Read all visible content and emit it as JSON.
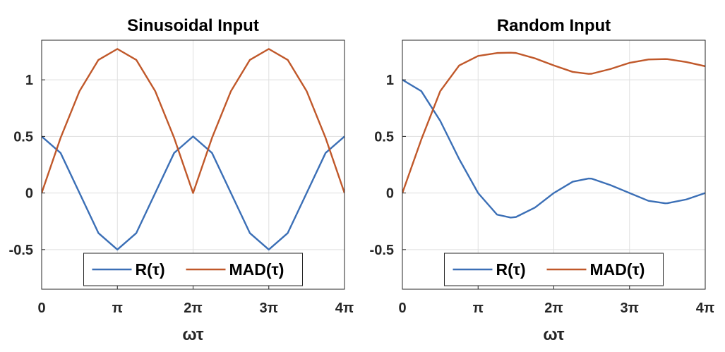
{
  "colors": {
    "R": "#3b6fb6",
    "MAD": "#c0582a"
  },
  "chart_data": [
    {
      "type": "line",
      "title": "Sinusoidal Input",
      "xlabel": "ωτ",
      "ylabel": "",
      "xlim": [
        0,
        12.566
      ],
      "ylim": [
        -0.85,
        1.35
      ],
      "xticks": [
        0,
        3.1416,
        6.2832,
        9.4248,
        12.5664
      ],
      "xtick_labels": [
        "0",
        "π",
        "2π",
        "3π",
        "4π"
      ],
      "yticks": [
        -0.5,
        0,
        0.5,
        1
      ],
      "ytick_labels": [
        "-0.5",
        "0",
        "0.5",
        "1"
      ],
      "grid": true,
      "legend": {
        "placement": "bottom",
        "entries": [
          "R(τ)",
          "MAD(τ)"
        ]
      },
      "x": [
        0,
        0.7854,
        1.5708,
        2.3562,
        3.1416,
        3.927,
        4.7124,
        5.4978,
        6.2832,
        7.0686,
        7.854,
        8.6394,
        9.4248,
        10.2102,
        10.9956,
        11.781,
        12.5664
      ],
      "series": [
        {
          "name": "R(τ)",
          "values": [
            0.5,
            0.354,
            0,
            -0.354,
            -0.5,
            -0.354,
            0,
            0.354,
            0.5,
            0.354,
            0,
            -0.354,
            -0.5,
            -0.354,
            0,
            0.354,
            0.5
          ]
        },
        {
          "name": "MAD(τ)",
          "values": [
            0,
            0.487,
            0.9,
            1.176,
            1.273,
            1.176,
            0.9,
            0.487,
            0,
            0.487,
            0.9,
            1.176,
            1.273,
            1.176,
            0.9,
            0.487,
            0
          ]
        }
      ]
    },
    {
      "type": "line",
      "title": "Random Input",
      "xlabel": "ωτ",
      "ylabel": "",
      "xlim": [
        0,
        12.566
      ],
      "ylim": [
        -0.85,
        1.35
      ],
      "xticks": [
        0,
        3.1416,
        6.2832,
        9.4248,
        12.5664
      ],
      "xtick_labels": [
        "0",
        "π",
        "2π",
        "3π",
        "4π"
      ],
      "yticks": [
        -0.5,
        0,
        0.5,
        1
      ],
      "ytick_labels": [
        "-0.5",
        "0",
        "0.5",
        "1"
      ],
      "grid": true,
      "legend": {
        "placement": "bottom",
        "entries": [
          "R(τ)",
          "MAD(τ)"
        ]
      },
      "x": [
        0,
        0.7854,
        1.5708,
        2.3562,
        3.1416,
        3.927,
        4.4934,
        4.7124,
        5.4978,
        6.2832,
        7.0686,
        7.7253,
        7.854,
        8.6394,
        9.4248,
        10.2102,
        10.9043,
        10.9956,
        11.781,
        12.5664
      ],
      "series": [
        {
          "name": "R(τ)",
          "values": [
            1,
            0.9,
            0.637,
            0.3,
            0,
            -0.191,
            -0.217,
            -0.212,
            -0.129,
            0,
            0.1,
            0.128,
            0.127,
            0.069,
            0,
            -0.069,
            -0.091,
            -0.09,
            -0.057,
            0
          ]
        },
        {
          "name": "MAD(τ)",
          "values": [
            0,
            0.473,
            0.9,
            1.127,
            1.211,
            1.237,
            1.24,
            1.237,
            1.19,
            1.127,
            1.07,
            1.053,
            1.054,
            1.096,
            1.15,
            1.18,
            1.184,
            1.183,
            1.157,
            1.12
          ]
        }
      ]
    }
  ]
}
